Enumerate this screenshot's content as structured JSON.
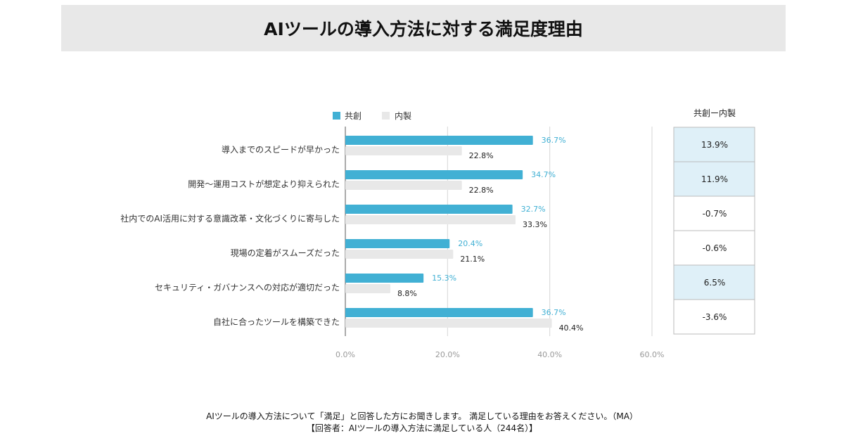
{
  "title": "AIツールの導入方法に対する満足度理由",
  "chart_data": {
    "type": "bar",
    "orientation": "horizontal",
    "categories": [
      "導入までのスピードが早かった",
      "開発〜運用コストが想定より抑えられた",
      "社内でのAI活用に対する意識改革・文化づくりに寄与した",
      "現場の定着がスムーズだった",
      "セキュリティ・ガバナンスへの対応が適切だった",
      "自社に合ったツールを構築できた"
    ],
    "series": [
      {
        "name": "共創",
        "color": "#41b0d4",
        "values": [
          36.7,
          34.7,
          32.7,
          20.4,
          15.3,
          36.7
        ],
        "labels": [
          "36.7%",
          "34.7%",
          "32.7%",
          "20.4%",
          "15.3%",
          "36.7%"
        ]
      },
      {
        "name": "内製",
        "color": "#e8e8e8",
        "values": [
          22.8,
          22.8,
          33.3,
          21.1,
          8.8,
          40.4
        ],
        "labels": [
          "22.8%",
          "22.8%",
          "33.3%",
          "21.1%",
          "8.8%",
          "40.4%"
        ]
      }
    ],
    "xlim": [
      0,
      60
    ],
    "xticks": [
      "0.0%",
      "20.0%",
      "40.0%",
      "60.0%"
    ],
    "grid": true,
    "legend": "top",
    "diff_table": {
      "header": "共創ー内製",
      "values": [
        "13.9%",
        "11.9%",
        "-0.7%",
        "-0.6%",
        "6.5%",
        "-3.6%"
      ],
      "highlight": [
        true,
        true,
        false,
        false,
        true,
        false
      ],
      "highlight_color": "#dff0f8"
    }
  },
  "footnote": {
    "line1": "AIツールの導入方法について「満足」と回答した方にお聞きします。 満足している理由をお答えください。（MA）",
    "line2": "【回答者：AIツールの導入方法に満足している人（244名）】"
  }
}
